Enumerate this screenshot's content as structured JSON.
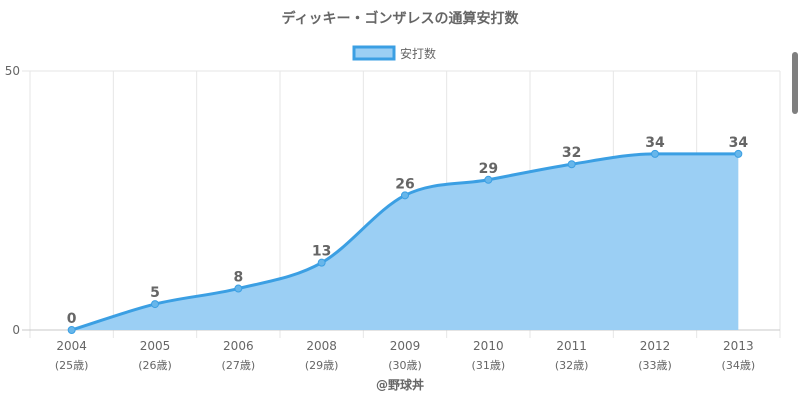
{
  "chart_data": {
    "type": "area",
    "title": "ディッキー・ゴンザレスの通算安打数",
    "categories": [
      "2004",
      "2005",
      "2006",
      "2008",
      "2009",
      "2010",
      "2011",
      "2012",
      "2013"
    ],
    "category_sublabels": [
      "(25歳)",
      "(26歳)",
      "(27歳)",
      "(29歳)",
      "(30歳)",
      "(31歳)",
      "(32歳)",
      "(33歳)",
      "(34歳)"
    ],
    "series": [
      {
        "name": "安打数",
        "values": [
          0,
          5,
          8,
          13,
          26,
          29,
          32,
          34,
          34
        ]
      }
    ],
    "ylim": [
      0,
      50
    ],
    "yticks": [
      "0",
      "50"
    ],
    "grid": true,
    "legend_position": "top-center",
    "data_labels": true,
    "source_label": "@野球丼",
    "colors": {
      "line": "#3b9fe3",
      "fill": "#9bcff4",
      "point": "#67b6ea",
      "grid": "#e6e6e6",
      "axis": "#c8c8c8",
      "text": "#666666"
    }
  }
}
